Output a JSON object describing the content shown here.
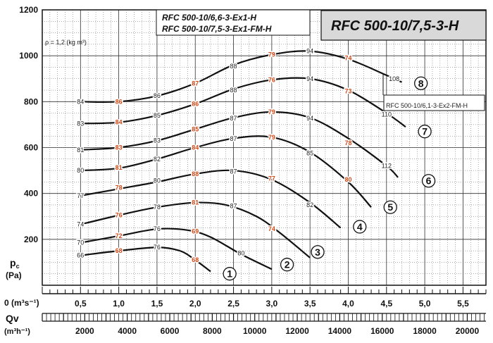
{
  "chart_data": {
    "type": "line",
    "model": "RFC 500-10/7,5-3-H",
    "variants": [
      "RFC 500-10/6,6-3-Ex1-H",
      "RFC 500-10/7,5-3-Ex1-FM-H"
    ],
    "density_note": "ρ = 1,2 (kg m³)",
    "annotation": "RFC 500-10/6,1-3-Ex2-FM-H",
    "ylabel_main": "p",
    "ylabel_sub": "c",
    "ylabel_unit": "(Pa)",
    "y_ticks": [
      0,
      200,
      400,
      600,
      800,
      1000,
      1200
    ],
    "ylim": [
      0,
      1200
    ],
    "x_ticks_ms": [
      "0,5",
      "1,0",
      "1,5",
      "2,0",
      "2,5",
      "3,0",
      "3,5",
      "4,0",
      "4,5",
      "5,0",
      "5,5"
    ],
    "x_ms_label": "0  (m³s⁻¹)",
    "xlim_ms": [
      0,
      5.8
    ],
    "x_ticks_mh": [
      "2000",
      "4000",
      "6000",
      "8000",
      "10000",
      "12000",
      "14000",
      "16000",
      "18000",
      "20000"
    ],
    "qv_label": "Qv",
    "x_mh_label": "(m³h⁻¹)",
    "series": [
      {
        "name": "1",
        "points": [
          [
            0.5,
            130
          ],
          [
            1.0,
            150
          ],
          [
            1.5,
            165
          ],
          [
            1.8,
            150
          ],
          [
            2.0,
            110
          ],
          [
            2.2,
            60
          ]
        ],
        "markers": [
          {
            "x": 0.5,
            "y": 130,
            "t": "66",
            "c": "k"
          },
          {
            "x": 1.0,
            "y": 150,
            "t": "68",
            "c": "r"
          },
          {
            "x": 1.5,
            "y": 165,
            "t": "76",
            "c": "k"
          },
          {
            "x": 2.0,
            "y": 110,
            "t": "68",
            "c": "r"
          }
        ]
      },
      {
        "name": "2",
        "points": [
          [
            0.5,
            185
          ],
          [
            1.0,
            215
          ],
          [
            1.5,
            245
          ],
          [
            1.9,
            240
          ],
          [
            2.2,
            210
          ],
          [
            2.6,
            135
          ],
          [
            3.0,
            70
          ]
        ],
        "markers": [
          {
            "x": 0.5,
            "y": 185,
            "t": "70",
            "c": "k"
          },
          {
            "x": 1.0,
            "y": 215,
            "t": "72",
            "c": "r"
          },
          {
            "x": 1.5,
            "y": 245,
            "t": "76",
            "c": "k"
          },
          {
            "x": 2.0,
            "y": 235,
            "t": "69",
            "c": "r"
          },
          {
            "x": 2.6,
            "y": 140,
            "t": "80",
            "c": "k"
          }
        ]
      },
      {
        "name": "3",
        "points": [
          [
            0.5,
            265
          ],
          [
            1.0,
            305
          ],
          [
            1.5,
            340
          ],
          [
            2.0,
            360
          ],
          [
            2.4,
            350
          ],
          [
            2.8,
            300
          ],
          [
            3.1,
            230
          ],
          [
            3.5,
            120
          ]
        ],
        "markers": [
          {
            "x": 0.5,
            "y": 265,
            "t": "74",
            "c": "k"
          },
          {
            "x": 1.0,
            "y": 305,
            "t": "76",
            "c": "r"
          },
          {
            "x": 1.5,
            "y": 340,
            "t": "78",
            "c": "k"
          },
          {
            "x": 2.0,
            "y": 360,
            "t": "81",
            "c": "r"
          },
          {
            "x": 2.5,
            "y": 345,
            "t": "87",
            "c": "k"
          },
          {
            "x": 3.0,
            "y": 245,
            "t": "74",
            "c": "r"
          }
        ]
      },
      {
        "name": "4",
        "points": [
          [
            0.5,
            390
          ],
          [
            1.0,
            420
          ],
          [
            1.5,
            450
          ],
          [
            2.0,
            485
          ],
          [
            2.5,
            500
          ],
          [
            3.0,
            460
          ],
          [
            3.5,
            360
          ],
          [
            3.9,
            250
          ]
        ],
        "markers": [
          {
            "x": 0.5,
            "y": 390,
            "t": "77",
            "c": "k"
          },
          {
            "x": 1.0,
            "y": 425,
            "t": "78",
            "c": "r"
          },
          {
            "x": 1.5,
            "y": 455,
            "t": "80",
            "c": "k"
          },
          {
            "x": 2.0,
            "y": 485,
            "t": "88",
            "c": "r"
          },
          {
            "x": 2.5,
            "y": 495,
            "t": "87",
            "c": "k"
          },
          {
            "x": 3.0,
            "y": 465,
            "t": "77",
            "c": "r"
          },
          {
            "x": 3.5,
            "y": 350,
            "t": "82",
            "c": "k"
          }
        ]
      },
      {
        "name": "5",
        "points": [
          [
            0.5,
            500
          ],
          [
            1.0,
            510
          ],
          [
            1.5,
            550
          ],
          [
            2.0,
            600
          ],
          [
            2.5,
            640
          ],
          [
            3.0,
            645
          ],
          [
            3.5,
            580
          ],
          [
            4.0,
            450
          ],
          [
            4.3,
            340
          ]
        ],
        "markers": [
          {
            "x": 0.5,
            "y": 500,
            "t": "80",
            "c": "k"
          },
          {
            "x": 1.0,
            "y": 512,
            "t": "81",
            "c": "r"
          },
          {
            "x": 1.5,
            "y": 550,
            "t": "82",
            "c": "k"
          },
          {
            "x": 2.0,
            "y": 600,
            "t": "84",
            "c": "r"
          },
          {
            "x": 2.5,
            "y": 638,
            "t": "87",
            "c": "k"
          },
          {
            "x": 3.0,
            "y": 645,
            "t": "79",
            "c": "r"
          },
          {
            "x": 3.5,
            "y": 575,
            "t": "85",
            "c": "k"
          },
          {
            "x": 4.0,
            "y": 460,
            "t": "80",
            "c": "r"
          }
        ]
      },
      {
        "name": "6",
        "points": [
          [
            0.5,
            590
          ],
          [
            1.0,
            600
          ],
          [
            1.5,
            630
          ],
          [
            2.0,
            680
          ],
          [
            2.5,
            730
          ],
          [
            3.0,
            755
          ],
          [
            3.5,
            730
          ],
          [
            4.0,
            640
          ],
          [
            4.5,
            520
          ],
          [
            4.65,
            470
          ]
        ],
        "markers": [
          {
            "x": 0.5,
            "y": 590,
            "t": "81",
            "c": "k"
          },
          {
            "x": 1.0,
            "y": 600,
            "t": "83",
            "c": "r"
          },
          {
            "x": 1.5,
            "y": 630,
            "t": "83",
            "c": "k"
          },
          {
            "x": 2.0,
            "y": 680,
            "t": "85",
            "c": "r"
          },
          {
            "x": 2.5,
            "y": 728,
            "t": "87",
            "c": "k"
          },
          {
            "x": 3.0,
            "y": 755,
            "t": "79",
            "c": "r"
          },
          {
            "x": 3.5,
            "y": 727,
            "t": "94",
            "c": "k"
          },
          {
            "x": 4.0,
            "y": 620,
            "t": "78",
            "c": "r"
          },
          {
            "x": 4.5,
            "y": 520,
            "t": "112",
            "c": "k"
          }
        ]
      },
      {
        "name": "7",
        "points": [
          [
            0.5,
            705
          ],
          [
            1.0,
            710
          ],
          [
            1.5,
            740
          ],
          [
            2.0,
            790
          ],
          [
            2.5,
            855
          ],
          [
            3.0,
            895
          ],
          [
            3.5,
            900
          ],
          [
            4.0,
            850
          ],
          [
            4.5,
            750
          ],
          [
            4.75,
            690
          ]
        ],
        "markers": [
          {
            "x": 0.5,
            "y": 705,
            "t": "83",
            "c": "k"
          },
          {
            "x": 1.0,
            "y": 710,
            "t": "84",
            "c": "r"
          },
          {
            "x": 1.5,
            "y": 740,
            "t": "85",
            "c": "k"
          },
          {
            "x": 2.0,
            "y": 790,
            "t": "86",
            "c": "r"
          },
          {
            "x": 2.5,
            "y": 850,
            "t": "88",
            "c": "k"
          },
          {
            "x": 3.0,
            "y": 895,
            "t": "76",
            "c": "r"
          },
          {
            "x": 3.5,
            "y": 900,
            "t": "94",
            "c": "k"
          },
          {
            "x": 4.0,
            "y": 845,
            "t": "73",
            "c": "r"
          },
          {
            "x": 4.5,
            "y": 745,
            "t": "110",
            "c": "k"
          }
        ]
      },
      {
        "name": "8",
        "points": [
          [
            0.5,
            800
          ],
          [
            1.0,
            800
          ],
          [
            1.5,
            825
          ],
          [
            2.0,
            880
          ],
          [
            2.5,
            960
          ],
          [
            3.0,
            1005
          ],
          [
            3.5,
            1020
          ],
          [
            4.0,
            985
          ],
          [
            4.5,
            915
          ],
          [
            4.7,
            885
          ]
        ],
        "markers": [
          {
            "x": 0.5,
            "y": 800,
            "t": "84",
            "c": "k"
          },
          {
            "x": 1.0,
            "y": 800,
            "t": "86",
            "c": "r"
          },
          {
            "x": 1.5,
            "y": 825,
            "t": "86",
            "c": "k"
          },
          {
            "x": 2.0,
            "y": 880,
            "t": "87",
            "c": "r"
          },
          {
            "x": 2.5,
            "y": 955,
            "t": "88",
            "c": "k"
          },
          {
            "x": 3.0,
            "y": 1005,
            "t": "79",
            "c": "r"
          },
          {
            "x": 3.5,
            "y": 1020,
            "t": "94",
            "c": "k"
          },
          {
            "x": 4.0,
            "y": 990,
            "t": "74",
            "c": "r"
          },
          {
            "x": 4.6,
            "y": 900,
            "t": "108",
            "c": "k"
          }
        ]
      }
    ],
    "curve_labels": [
      {
        "name": "1",
        "x": 2.45,
        "y": 50
      },
      {
        "name": "2",
        "x": 3.2,
        "y": 90
      },
      {
        "name": "3",
        "x": 3.6,
        "y": 145
      },
      {
        "name": "4",
        "x": 4.15,
        "y": 255
      },
      {
        "name": "5",
        "x": 4.55,
        "y": 340
      },
      {
        "name": "6",
        "x": 5.05,
        "y": 455
      },
      {
        "name": "7",
        "x": 5.0,
        "y": 670
      },
      {
        "name": "8",
        "x": 4.95,
        "y": 880
      }
    ],
    "grid": true,
    "colors": {
      "line": "#111111",
      "red": "#d04a18",
      "grid": "#555555"
    }
  }
}
